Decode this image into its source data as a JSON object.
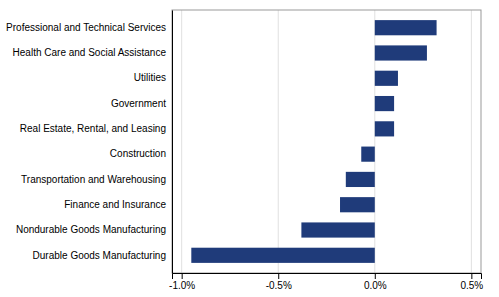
{
  "chart_data": {
    "type": "bar",
    "orientation": "horizontal",
    "categories": [
      "Durable Goods Manufacturing",
      "Nondurable Goods Manufacturing",
      "Finance and Insurance",
      "Transportation and Warehousing",
      "Construction",
      "Real Estate, Rental, and Leasing",
      "Government",
      "Utilities",
      "Health Care and Social Assistance",
      "Professional and Technical Services"
    ],
    "values": [
      -0.95,
      -0.38,
      -0.18,
      -0.15,
      -0.07,
      0.1,
      0.1,
      0.12,
      0.27,
      0.32
    ],
    "color": "#1F3B7A",
    "xlim": [
      -1.05,
      0.55
    ],
    "xticks": [
      {
        "value": -1.0,
        "label": "-1.0%"
      },
      {
        "value": -0.5,
        "label": "-0.5%"
      },
      {
        "value": 0.0,
        "label": "0.0%"
      },
      {
        "value": 0.5,
        "label": "0.5%"
      }
    ],
    "grid": true
  }
}
